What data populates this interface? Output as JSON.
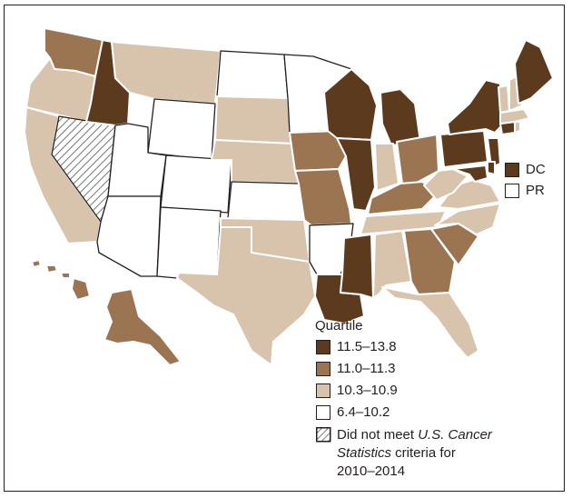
{
  "legend": {
    "title": "Quartile",
    "items": [
      {
        "id": "q1",
        "label": "11.5–13.8",
        "color": "#5c3a1e"
      },
      {
        "id": "q2",
        "label": "11.0–11.3",
        "color": "#9b7452"
      },
      {
        "id": "q3",
        "label": "10.3–10.9",
        "color": "#d8c3ad"
      },
      {
        "id": "q4",
        "label": "6.4–10.2",
        "color": "#ffffff"
      }
    ],
    "not_met": {
      "line1_pre": "Did not meet ",
      "line1_italic": "U.S. Cancer",
      "line2_italic": "Statistics",
      "line2_post": " criteria for",
      "line3": "2010–2014"
    }
  },
  "territories": [
    {
      "name": "DC",
      "quartile": "q1"
    },
    {
      "name": "PR",
      "quartile": "q4"
    }
  ],
  "states": {
    "WA": "q2",
    "OR": "q3",
    "CA": "q3",
    "NV": "na",
    "ID": "q1",
    "MT": "q3",
    "WY": "q4",
    "UT": "q4",
    "CO": "q4",
    "AZ": "q4",
    "NM": "q4",
    "ND": "q4",
    "SD": "q3",
    "NE": "q3",
    "KS": "q4",
    "OK": "q3",
    "TX": "q3",
    "MN": "q4",
    "IA": "q2",
    "MO": "q2",
    "AR": "q4",
    "LA": "q1",
    "WI": "q1",
    "IL": "q1",
    "MI": "q1",
    "IN": "q3",
    "OH": "q2",
    "KY": "q2",
    "TN": "q3",
    "MS": "q1",
    "AL": "q3",
    "GA": "q2",
    "FL": "q3",
    "SC": "q2",
    "NC": "q3",
    "VA": "q3",
    "WV": "q3",
    "PA": "q1",
    "NY": "q1",
    "VT": "q3",
    "NH": "q3",
    "ME": "q1",
    "MA": "q3",
    "CT": "q1",
    "RI": "q3",
    "NJ": "q1",
    "DE": "q1",
    "MD": "q1",
    "AK": "q2",
    "HI": "q2"
  }
}
